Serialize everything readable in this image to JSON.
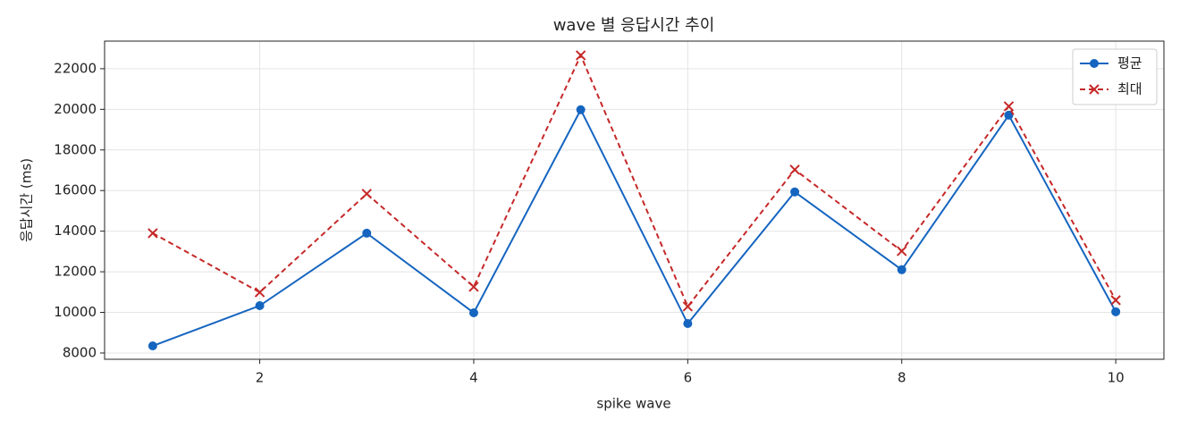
{
  "chart_data": {
    "type": "line",
    "title": "wave 별 응답시간 추이",
    "x_label": "spike wave",
    "y_label": "응답시간 (ms)",
    "x": [
      1,
      2,
      3,
      4,
      5,
      6,
      7,
      8,
      9,
      10
    ],
    "series": [
      {
        "name": "평균",
        "color": "#1565c0",
        "linestyle": "solid",
        "marker": "circle",
        "values": [
          8350,
          10330,
          13900,
          9980,
          19980,
          9450,
          15930,
          12100,
          19710,
          10030
        ]
      },
      {
        "name": "최대",
        "color": "#c62828",
        "linestyle": "dashed",
        "marker": "x",
        "values": [
          13900,
          10990,
          15840,
          11260,
          22660,
          10290,
          17030,
          13020,
          20150,
          10600
        ]
      }
    ],
    "xlim": [
      0.55,
      10.45
    ],
    "xticks": [
      2,
      4,
      6,
      8,
      10
    ],
    "ylim": [
      7690,
      23360
    ],
    "yticks": [
      8000,
      10000,
      12000,
      14000,
      16000,
      18000,
      20000,
      22000
    ],
    "grid": true,
    "legend": "upper right"
  }
}
